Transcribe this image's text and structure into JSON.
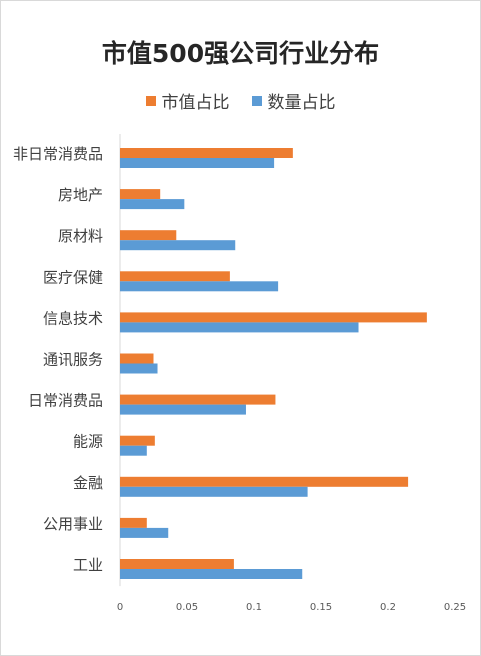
{
  "chart_data": {
    "type": "bar",
    "orientation": "horizontal",
    "title": "市值500强公司行业分布",
    "categories": [
      "非日常消费品",
      "房地产",
      "原材料",
      "医疗保健",
      "信息技术",
      "通讯服务",
      "日常消费品",
      "能源",
      "金融",
      "公用事业",
      "工业"
    ],
    "series": [
      {
        "name": "市值占比",
        "color": "#ED7D31",
        "values": [
          0.129,
          0.03,
          0.042,
          0.082,
          0.229,
          0.025,
          0.116,
          0.026,
          0.215,
          0.02,
          0.085
        ]
      },
      {
        "name": "数量占比",
        "color": "#5B9BD5",
        "values": [
          0.115,
          0.048,
          0.086,
          0.118,
          0.178,
          0.028,
          0.094,
          0.02,
          0.14,
          0.036,
          0.136
        ]
      }
    ],
    "xlim": [
      0,
      0.25
    ],
    "xticks": [
      "0",
      "0.05",
      "0.1",
      "0.15",
      "0.2",
      "0.25"
    ],
    "legend_position": "top",
    "grid": false
  }
}
